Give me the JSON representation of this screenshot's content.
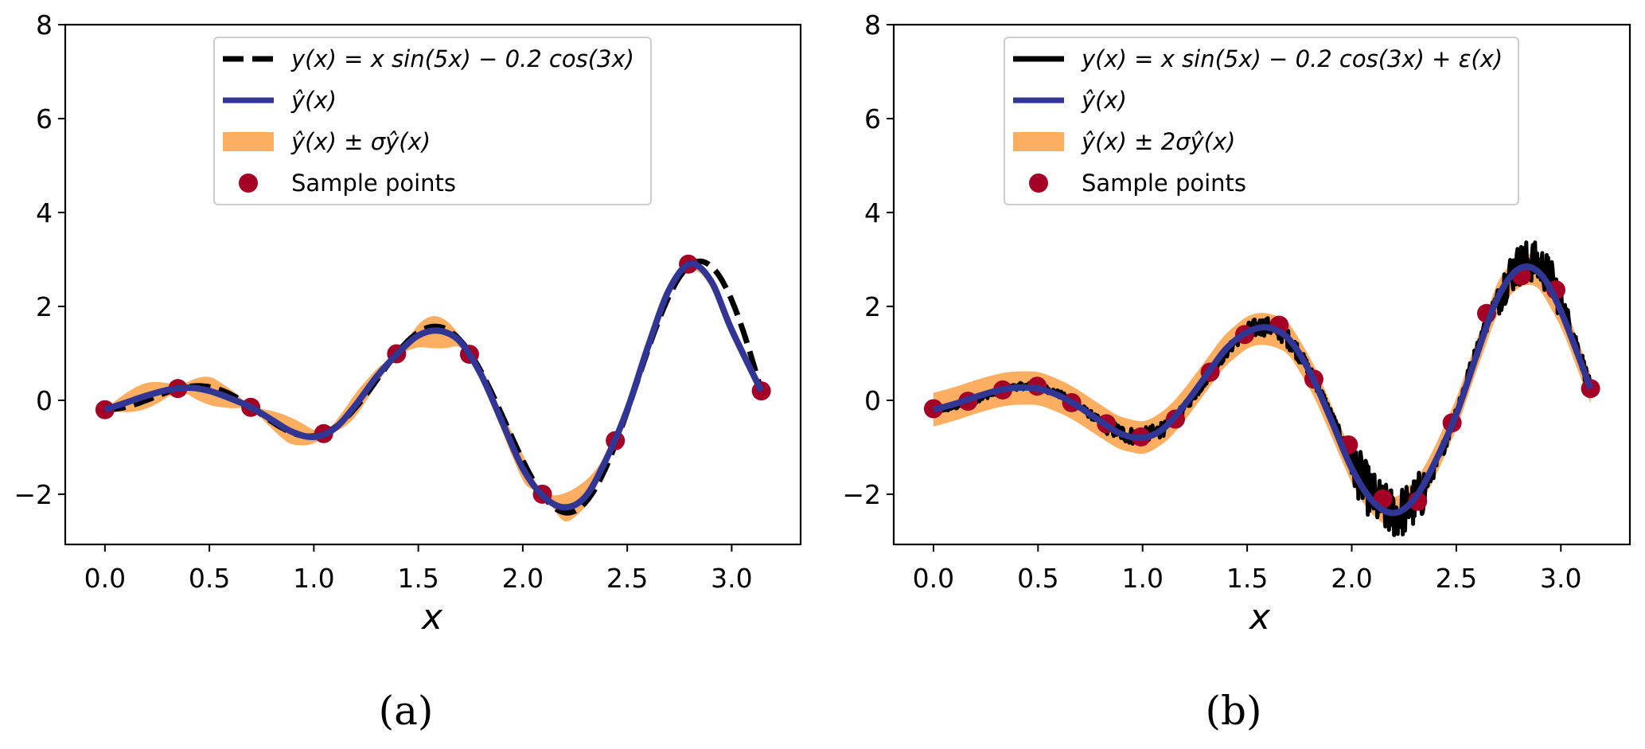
{
  "colors": {
    "true_curve": "#000000",
    "prediction": "#313695",
    "band": "#fdae61",
    "samples": "#a50026"
  },
  "chart_data": [
    {
      "panel": "a",
      "type": "line",
      "caption": "(a)",
      "xlabel": "x",
      "ylabel": "",
      "xlim": [
        -0.19,
        3.33
      ],
      "ylim": [
        -3.07,
        8
      ],
      "xticks": [
        0.0,
        0.5,
        1.0,
        1.5,
        2.0,
        2.5,
        3.0
      ],
      "xtick_labels": [
        "0.0",
        "0.5",
        "1.0",
        "1.5",
        "2.0",
        "2.5",
        "3.0"
      ],
      "yticks": [
        -2,
        0,
        2,
        4,
        6,
        8
      ],
      "ytick_labels": [
        "−2",
        "0",
        "2",
        "4",
        "6",
        "8"
      ],
      "grid": false,
      "legend_position": "top-center",
      "legend": [
        {
          "kind": "dashed-line",
          "label": "y(x) = x sin(5x) − 0.2 cos(3x)"
        },
        {
          "kind": "line",
          "label": "ŷ(x)"
        },
        {
          "kind": "band",
          "label": "ŷ(x) ± σŷ(x)"
        },
        {
          "kind": "marker",
          "label": "Sample points"
        }
      ],
      "true_function": "x*sin(5x) - 0.2*cos(3x)",
      "band_multiplier": 1,
      "samples": {
        "x": [
          0.0,
          0.349,
          0.698,
          1.047,
          1.396,
          1.745,
          2.094,
          2.443,
          2.793,
          3.142
        ],
        "y": [
          -0.2,
          0.25,
          -0.15,
          -0.71,
          0.99,
          0.98,
          -2.0,
          -0.86,
          2.9,
          0.2
        ]
      },
      "prediction": {
        "x": [
          0.0,
          0.1,
          0.2,
          0.3,
          0.4,
          0.5,
          0.6,
          0.7,
          0.8,
          0.9,
          1.0,
          1.1,
          1.2,
          1.3,
          1.4,
          1.5,
          1.6,
          1.7,
          1.8,
          1.9,
          2.0,
          2.1,
          2.2,
          2.3,
          2.4,
          2.5,
          2.6,
          2.7,
          2.8,
          2.9,
          3.0,
          3.142
        ],
        "y": [
          -0.2,
          -0.05,
          0.1,
          0.22,
          0.27,
          0.2,
          0.04,
          -0.15,
          -0.42,
          -0.68,
          -0.78,
          -0.6,
          -0.1,
          0.5,
          0.99,
          1.38,
          1.48,
          1.25,
          0.55,
          -0.45,
          -1.45,
          -2.05,
          -2.28,
          -2.05,
          -1.25,
          -0.2,
          1.15,
          2.35,
          2.9,
          2.55,
          1.5,
          0.2
        ]
      },
      "sigma": {
        "x": [
          0.0,
          0.1,
          0.2,
          0.3,
          0.349,
          0.4,
          0.5,
          0.6,
          0.698,
          0.8,
          0.9,
          1.0,
          1.047,
          1.1,
          1.2,
          1.3,
          1.396,
          1.5,
          1.6,
          1.745,
          1.9,
          2.0,
          2.094,
          2.2,
          2.3,
          2.443,
          2.6,
          2.7,
          2.793,
          2.9,
          3.0,
          3.142
        ],
        "y": [
          0.0,
          0.22,
          0.28,
          0.18,
          0.0,
          0.18,
          0.3,
          0.22,
          0.0,
          0.2,
          0.3,
          0.15,
          0.0,
          0.12,
          0.25,
          0.18,
          0.0,
          0.25,
          0.38,
          0.0,
          0.2,
          0.3,
          0.0,
          0.3,
          0.3,
          0.0,
          0.12,
          0.12,
          0.0,
          0.12,
          0.1,
          0.0
        ]
      }
    },
    {
      "panel": "b",
      "type": "line",
      "caption": "(b)",
      "xlabel": "x",
      "ylabel": "",
      "xlim": [
        -0.19,
        3.33
      ],
      "ylim": [
        -3.07,
        8
      ],
      "xticks": [
        0.0,
        0.5,
        1.0,
        1.5,
        2.0,
        2.5,
        3.0
      ],
      "xtick_labels": [
        "0.0",
        "0.5",
        "1.0",
        "1.5",
        "2.0",
        "2.5",
        "3.0"
      ],
      "yticks": [
        -2,
        0,
        2,
        4,
        6,
        8
      ],
      "ytick_labels": [
        "−2",
        "0",
        "2",
        "4",
        "6",
        "8"
      ],
      "grid": false,
      "legend_position": "top-center",
      "legend": [
        {
          "kind": "line-black",
          "label": "y(x) = x sin(5x) − 0.2 cos(3x) + ε(x)"
        },
        {
          "kind": "line",
          "label": "ŷ(x)"
        },
        {
          "kind": "band",
          "label": "ŷ(x) ± 2σŷ(x)"
        },
        {
          "kind": "marker",
          "label": "Sample points"
        }
      ],
      "true_function": "x*sin(5x) - 0.2*cos(3x) + noise",
      "band_multiplier": 2,
      "samples": {
        "x": [
          0.0,
          0.165,
          0.331,
          0.496,
          0.661,
          0.827,
          0.992,
          1.157,
          1.323,
          1.488,
          1.653,
          1.819,
          1.984,
          2.149,
          2.315,
          2.48,
          2.645,
          2.811,
          2.976,
          3.142
        ],
        "y": [
          -0.18,
          -0.02,
          0.22,
          0.3,
          -0.05,
          -0.5,
          -0.78,
          -0.4,
          0.6,
          1.4,
          1.6,
          0.45,
          -0.95,
          -2.1,
          -2.15,
          -0.48,
          1.85,
          2.65,
          2.35,
          0.25
        ]
      },
      "prediction": {
        "x": [
          0.0,
          0.1,
          0.2,
          0.3,
          0.4,
          0.5,
          0.6,
          0.7,
          0.8,
          0.9,
          1.0,
          1.1,
          1.2,
          1.3,
          1.4,
          1.5,
          1.6,
          1.7,
          1.8,
          1.9,
          2.0,
          2.1,
          2.2,
          2.3,
          2.4,
          2.5,
          2.6,
          2.7,
          2.8,
          2.9,
          3.0,
          3.142
        ],
        "y": [
          -0.2,
          -0.08,
          0.07,
          0.2,
          0.27,
          0.25,
          0.1,
          -0.15,
          -0.45,
          -0.72,
          -0.8,
          -0.6,
          -0.1,
          0.5,
          1.1,
          1.45,
          1.55,
          1.3,
          0.6,
          -0.4,
          -1.45,
          -2.15,
          -2.4,
          -2.1,
          -1.3,
          -0.3,
          1.0,
          2.2,
          2.8,
          2.7,
          1.9,
          0.25
        ]
      },
      "sigma": {
        "x": [
          0.0,
          3.142
        ],
        "y": [
          0.18,
          0.16
        ]
      }
    }
  ]
}
